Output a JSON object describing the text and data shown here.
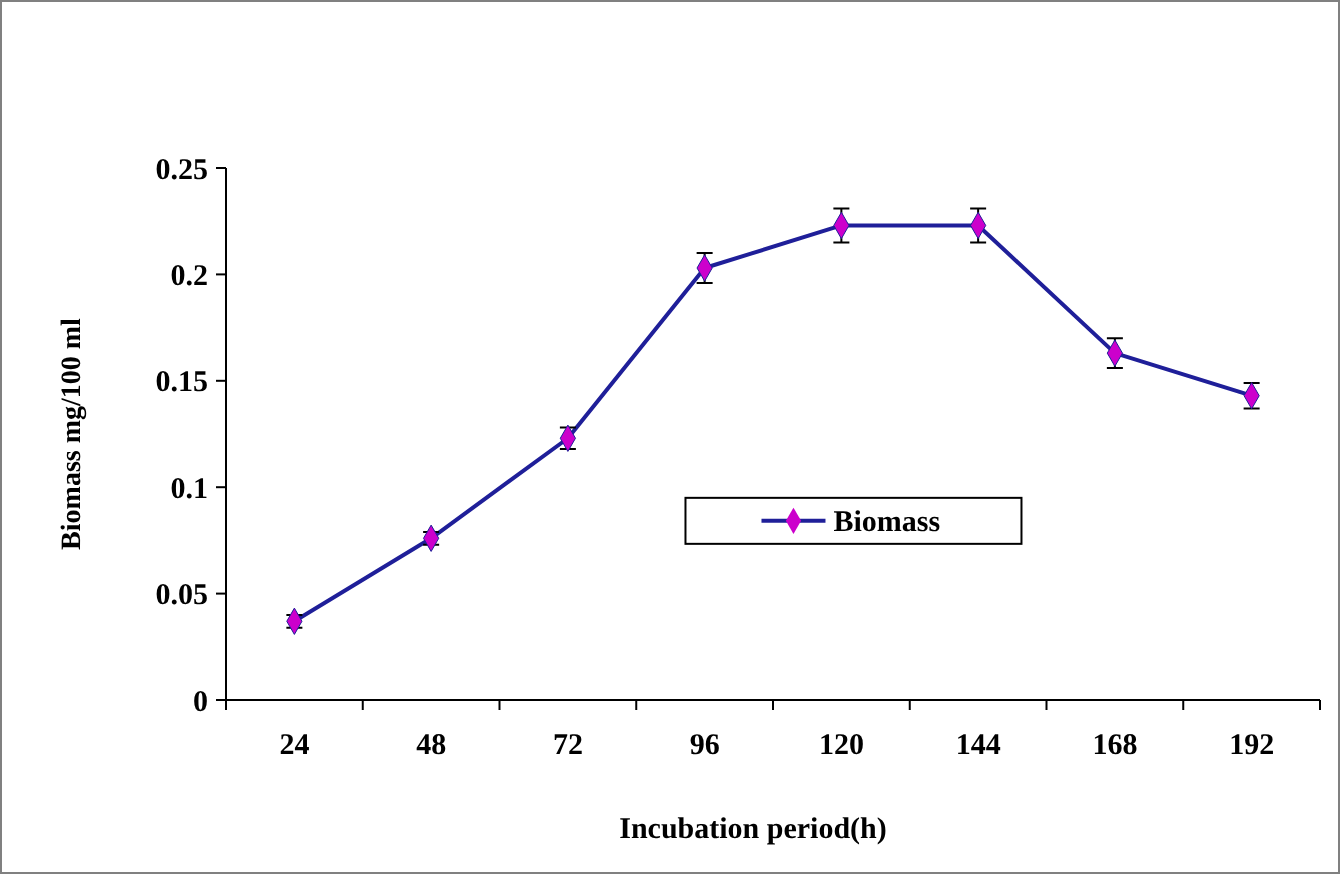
{
  "chart_data": {
    "type": "line",
    "xlabel": "Incubation period(h)",
    "ylabel": "Biomass mg/100 ml",
    "categories": [
      "24",
      "48",
      "72",
      "96",
      "120",
      "144",
      "168",
      "192"
    ],
    "series": [
      {
        "name": "Biomass",
        "color": "#1f1f99",
        "values": [
          0.037,
          0.076,
          0.123,
          0.203,
          0.223,
          0.223,
          0.163,
          0.143
        ],
        "errors": [
          0.003,
          0.003,
          0.005,
          0.007,
          0.008,
          0.008,
          0.007,
          0.006
        ],
        "colors": [
          "#cc00cc",
          "#cc00cc",
          "#cc00cc",
          "#cc00cc",
          "#cc00cc",
          "#cc00cc",
          "#cc00cc",
          "#cc00cc"
        ]
      }
    ],
    "ylim": [
      0,
      0.25
    ],
    "yticks": [
      0,
      0.05,
      0.1,
      0.15,
      0.2,
      0.25
    ],
    "marker": "diamond",
    "legend": "center",
    "grid": false
  }
}
